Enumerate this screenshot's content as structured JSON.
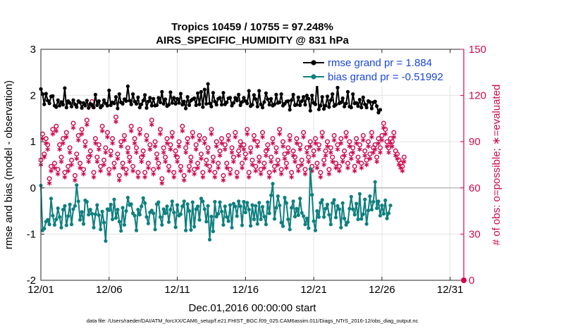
{
  "chart_data": {
    "type": "line",
    "title_line1": "Tropics 10459 / 10755 = 97.248%",
    "title_line2": "AIRS_SPECIFIC_HUMIDITY @ 831 hPa",
    "xlabel": "Dec.01,2016 00:00:00 start",
    "ylabel_left": "rmse and bias (model - observation)",
    "ylabel_right": "# of obs: o=possible; ∗=evaluated",
    "footer": "data file: /Users/raeder/DAI/ATM_forcXX/CAM6_setup/f.e21.FHIST_BGC.f09_025.CAM6assim.011/Diags_NTrS_2016-12/obs_diag_output.nc",
    "x_range": [
      0,
      31
    ],
    "x_tick_values": [
      0,
      5,
      10,
      15,
      20,
      25,
      30
    ],
    "x_tick_labels": [
      "12/01",
      "12/06",
      "12/11",
      "12/16",
      "12/21",
      "12/26",
      "12/31"
    ],
    "ylim_left": [
      -2,
      3
    ],
    "y_ticks_left": [
      "-2",
      "-1",
      "0",
      "1",
      "2",
      "3"
    ],
    "ylim_right": [
      0,
      150
    ],
    "y_ticks_right": [
      "0",
      "30",
      "60",
      "90",
      "120",
      "150"
    ],
    "colors": {
      "rmse": "#000000",
      "bias": "#0f7f7f",
      "obs": "#cc0a4f",
      "legend_text": "#1a47d6",
      "zero_line": "#bbbbbb"
    },
    "legend": [
      "rmse grand pr = 1.884",
      "bias grand pr = -0.51992"
    ],
    "series": [
      {
        "name": "rmse",
        "axis": "left",
        "x_start": 0,
        "x_step": 0.125,
        "values": [
          2.14,
          2.03,
          1.81,
          2.04,
          1.89,
          1.83,
          1.98,
          1.99,
          1.78,
          1.75,
          1.9,
          1.78,
          1.86,
          1.8,
          2.16,
          1.74,
          1.88,
          1.84,
          1.76,
          1.9,
          1.81,
          1.75,
          1.88,
          1.85,
          1.73,
          1.84,
          1.78,
          1.89,
          1.73,
          1.82,
          1.79,
          1.74,
          2.02,
          1.79,
          1.88,
          1.74,
          1.78,
          1.9,
          1.83,
          1.78,
          2.11,
          1.79,
          1.85,
          1.83,
          1.97,
          1.72,
          2.03,
          1.85,
          1.82,
          1.92,
          1.88,
          2.2,
          1.89,
          1.81,
          2.03,
          1.87,
          1.82,
          1.96,
          1.74,
          1.81,
          1.89,
          2.01,
          1.73,
          1.87,
          1.95,
          1.78,
          1.93,
          1.78,
          1.79,
          1.95,
          1.85,
          2.08,
          1.82,
          1.92,
          1.77,
          1.8,
          2.07,
          1.84,
          1.95,
          1.82,
          1.93,
          1.84,
          2.04,
          1.8,
          1.87,
          1.72,
          1.97,
          1.79,
          1.89,
          1.92,
          1.94,
          1.79,
          2.05,
          1.81,
          2.08,
          1.75,
          2.13,
          1.82,
          2.25,
          1.83,
          1.76,
          2.06,
          1.87,
          1.8,
          1.93,
          1.95,
          1.8,
          2.06,
          1.81,
          1.85,
          1.94,
          1.95,
          1.78,
          1.84,
          1.95,
          1.89,
          2.02,
          1.79,
          1.86,
          1.95,
          1.88,
          1.83,
          2.1,
          1.77,
          1.8,
          2.01,
          1.92,
          1.76,
          2.1,
          1.81,
          1.74,
          1.86,
          2.05,
          1.92,
          1.8,
          1.93,
          1.78,
          1.81,
          2.02,
          1.84,
          1.85,
          2.03,
          1.78,
          1.82,
          1.87,
          1.88,
          1.69,
          1.9,
          2.02,
          1.79,
          1.8,
          1.96,
          1.79,
          1.88,
          1.97,
          1.8,
          2.0,
          1.93,
          1.67,
          2.0,
          1.84,
          1.81,
          2.33,
          1.7,
          1.78,
          1.97,
          1.71,
          1.78,
          1.98,
          1.75,
          1.9,
          2.03,
          1.77,
          1.8,
          2.17,
          1.83,
          1.85,
          1.94,
          1.76,
          1.83,
          2.08,
          1.76,
          1.74,
          2.03,
          1.83,
          1.84,
          1.77,
          1.91,
          1.74,
          1.96,
          1.81,
          1.74,
          1.88,
          1.86,
          1.72,
          1.85,
          1.87,
          1.77,
          1.63,
          1.69
        ]
      },
      {
        "name": "bias",
        "axis": "left",
        "x_start": 0,
        "x_step": 0.125,
        "values": [
          0.05,
          -0.92,
          -0.88,
          -0.73,
          -0.69,
          -0.79,
          -0.23,
          -0.6,
          -0.8,
          -0.68,
          -0.44,
          -0.63,
          -0.86,
          -0.47,
          -0.39,
          -0.81,
          -0.61,
          -0.36,
          -0.79,
          -0.46,
          -0.39,
          0.06,
          -0.29,
          -0.69,
          -0.52,
          -0.78,
          -0.27,
          -0.3,
          -0.58,
          -0.47,
          -0.56,
          -0.86,
          -0.57,
          -0.37,
          -0.59,
          -0.9,
          -0.51,
          -0.75,
          -1.15,
          -0.46,
          -0.48,
          -0.36,
          -0.68,
          -0.25,
          -0.65,
          -0.47,
          -0.73,
          -0.93,
          -0.43,
          -0.8,
          -0.5,
          -0.21,
          -0.37,
          -0.35,
          -0.55,
          -0.6,
          -0.92,
          -0.47,
          -0.58,
          -0.4,
          -0.22,
          -0.33,
          -0.63,
          -0.77,
          -0.53,
          -0.49,
          -0.55,
          -0.9,
          -0.35,
          -0.31,
          -0.63,
          -0.8,
          -0.46,
          -0.55,
          -0.4,
          -0.74,
          -0.47,
          -0.29,
          -0.53,
          -0.85,
          -0.37,
          -0.6,
          -0.57,
          -0.4,
          -0.29,
          -0.92,
          -0.35,
          -0.5,
          -0.91,
          -0.31,
          -0.84,
          -0.46,
          -0.4,
          -0.69,
          -0.23,
          -0.29,
          -0.46,
          -0.73,
          -0.39,
          -1.12,
          -0.62,
          -0.94,
          -0.3,
          -0.62,
          -0.56,
          -0.31,
          -0.51,
          -0.8,
          -0.4,
          -0.63,
          -0.72,
          -0.37,
          -0.86,
          -0.34,
          -0.4,
          -0.61,
          -0.29,
          -0.4,
          -0.81,
          -0.3,
          -0.53,
          -0.32,
          -0.47,
          -0.82,
          -0.37,
          -0.68,
          -0.39,
          -0.78,
          -0.32,
          -0.68,
          -0.41,
          -0.62,
          -0.79,
          -0.31,
          -0.55,
          -0.16,
          0.09,
          -0.67,
          -0.43,
          -0.18,
          -0.38,
          -0.75,
          -0.83,
          -0.21,
          -0.33,
          -0.68,
          -0.9,
          -0.43,
          -0.29,
          -0.62,
          -0.45,
          -0.59,
          -0.23,
          -0.54,
          -0.61,
          -0.79,
          -0.66,
          -0.87,
          0.41,
          -0.15,
          -0.72,
          -0.92,
          -0.5,
          -0.63,
          -0.32,
          -0.26,
          -0.63,
          -0.45,
          -0.36,
          -0.58,
          -0.79,
          -0.33,
          -0.26,
          -0.64,
          -0.39,
          -0.46,
          -0.86,
          -0.33,
          -0.66,
          -0.8,
          -0.74,
          -0.45,
          -0.19,
          -0.46,
          -0.58,
          -0.34,
          -0.68,
          -0.13,
          -0.67,
          -0.57,
          -0.25,
          -0.78,
          -0.49,
          -0.18,
          -0.47,
          -0.3,
          0.13,
          -0.44,
          -0.29,
          -0.6,
          -0.38,
          -0.56,
          -0.27,
          -0.66,
          -0.55,
          -0.38
        ]
      },
      {
        "name": "obs_possible",
        "axis": "right",
        "marker": "circle",
        "x_start": 0,
        "x_step": 0.125,
        "values": [
          78,
          95,
          82,
          92,
          88,
          66,
          74,
          98,
          76,
          100,
          72,
          88,
          80,
          92,
          70,
          96,
          74,
          86,
          78,
          102,
          68,
          82,
          94,
          76,
          98,
          72,
          90,
          104,
          80,
          84,
          116,
          70,
          92,
          80,
          88,
          74,
          100,
          78,
          86,
          96,
          72,
          84,
          92,
          76,
          106,
          82,
          68,
          90,
          76,
          94,
          72,
          86,
          80,
          100,
          74,
          92,
          86,
          70,
          98,
          80,
          84,
          70,
          94,
          76,
          88,
          104,
          72,
          90,
          82,
          76,
          98,
          66,
          86,
          80,
          92,
          74,
          88,
          96,
          70,
          84,
          80,
          90,
          74,
          100,
          68,
          86,
          92,
          74,
          80,
          96,
          72,
          88,
          76,
          94,
          82,
          70,
          92,
          78,
          86,
          74,
          98,
          80,
          70,
          90,
          76,
          84,
          92,
          68,
          88,
          76,
          94,
          72,
          86,
          80,
          96,
          70,
          84,
          90,
          76,
          88,
          82,
          98,
          70,
          86,
          78,
          94,
          74,
          90,
          80,
          72,
          96,
          76,
          84,
          88,
          70,
          80,
          92,
          74,
          86,
          78,
          98,
          72,
          90,
          82,
          76,
          86,
          94,
          70,
          84,
          80,
          92,
          74,
          88,
          78,
          96,
          72,
          86,
          80,
          90,
          74,
          84,
          92,
          76,
          88,
          70,
          96,
          78,
          84,
          90,
          72,
          86,
          80,
          94,
          76,
          88,
          74,
          92,
          80,
          84,
          96,
          76,
          90,
          82,
          86,
          74,
          92,
          80,
          88,
          76,
          94,
          84,
          78,
          90,
          82,
          96,
          86,
          88,
          80,
          92,
          86,
          94,
          102,
          98,
          90,
          86,
          92,
          90,
          96,
          84,
          82,
          78,
          76,
          74,
          80
        ]
      },
      {
        "name": "obs_evaluated",
        "axis": "right",
        "marker": "asterisk",
        "x_start": 0,
        "x_step": 0.125,
        "values": [
          75,
          92,
          80,
          89,
          85,
          63,
          71,
          95,
          73,
          97,
          69,
          85,
          77,
          89,
          67,
          93,
          71,
          83,
          75,
          99,
          65,
          79,
          91,
          73,
          95,
          69,
          87,
          101,
          77,
          81,
          113,
          67,
          89,
          77,
          85,
          71,
          97,
          75,
          83,
          93,
          69,
          81,
          89,
          73,
          103,
          79,
          65,
          87,
          73,
          91,
          69,
          83,
          77,
          97,
          71,
          89,
          83,
          67,
          95,
          77,
          81,
          67,
          91,
          73,
          85,
          101,
          69,
          87,
          79,
          73,
          95,
          63,
          83,
          77,
          89,
          71,
          85,
          93,
          67,
          81,
          77,
          87,
          71,
          97,
          65,
          83,
          89,
          71,
          77,
          93,
          69,
          85,
          73,
          91,
          79,
          67,
          89,
          75,
          83,
          71,
          95,
          77,
          67,
          87,
          73,
          81,
          89,
          65,
          85,
          73,
          91,
          69,
          83,
          77,
          93,
          67,
          81,
          87,
          73,
          85,
          79,
          95,
          67,
          83,
          75,
          91,
          71,
          87,
          77,
          69,
          93,
          73,
          81,
          85,
          67,
          77,
          89,
          71,
          83,
          75,
          95,
          69,
          87,
          79,
          73,
          83,
          91,
          67,
          81,
          77,
          89,
          71,
          85,
          75,
          93,
          69,
          83,
          77,
          87,
          71,
          81,
          89,
          73,
          85,
          67,
          93,
          75,
          81,
          87,
          69,
          83,
          77,
          91,
          73,
          85,
          71,
          89,
          77,
          81,
          93,
          73,
          87,
          79,
          83,
          71,
          89,
          77,
          85,
          73,
          91,
          81,
          75,
          87,
          79,
          93,
          83,
          85,
          77,
          89,
          83,
          91,
          99,
          95,
          87,
          83,
          89,
          87,
          93,
          81,
          79,
          75,
          73,
          71,
          77
        ]
      }
    ],
    "annotations": [
      {
        "series": "obs_possible",
        "x": 31.0,
        "y": 0,
        "note": "point on right axis at zero"
      }
    ]
  }
}
